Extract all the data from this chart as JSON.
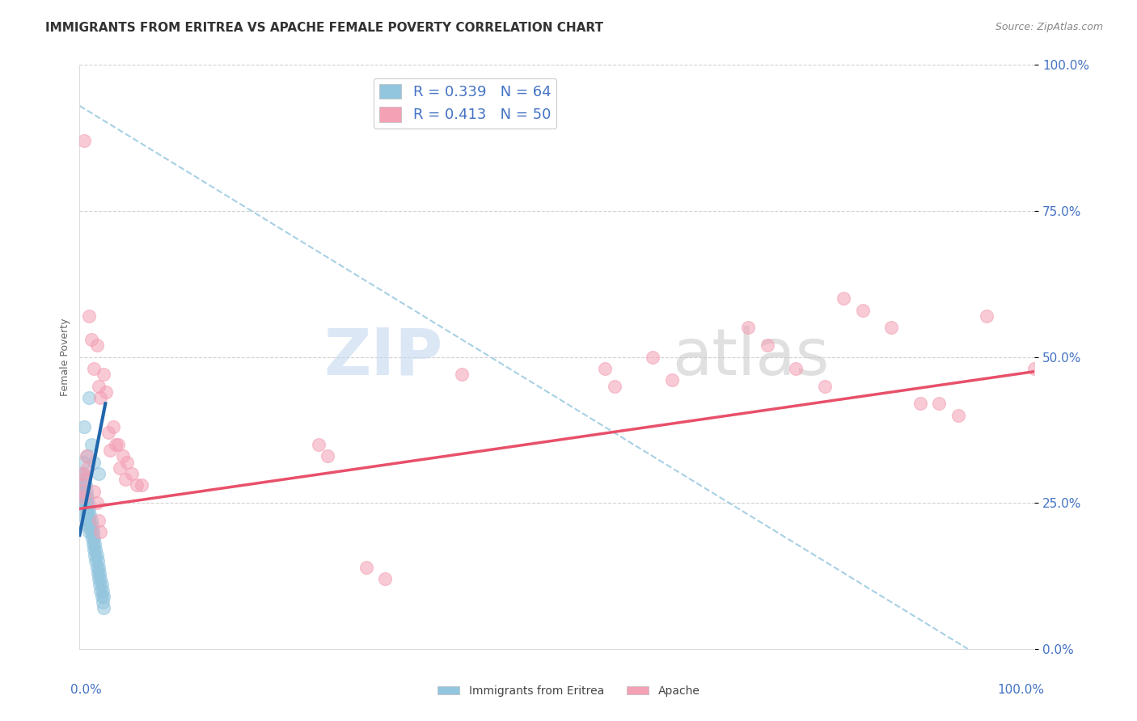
{
  "title": "IMMIGRANTS FROM ERITREA VS APACHE FEMALE POVERTY CORRELATION CHART",
  "source": "Source: ZipAtlas.com",
  "ylabel": "Female Poverty",
  "ytick_labels": [
    "0.0%",
    "25.0%",
    "50.0%",
    "75.0%",
    "100.0%"
  ],
  "ytick_positions": [
    0.0,
    0.25,
    0.5,
    0.75,
    1.0
  ],
  "xlim": [
    0.0,
    1.0
  ],
  "ylim": [
    0.0,
    1.0
  ],
  "blue_color": "#92c5de",
  "pink_color": "#f4a0b5",
  "blue_line_color": "#2166ac",
  "pink_line_color": "#e8506a",
  "dashed_line_color": "#92c5de",
  "tick_color": "#4472c4",
  "blue_scatter": [
    [
      0.002,
      0.3
    ],
    [
      0.002,
      0.27
    ],
    [
      0.002,
      0.26
    ],
    [
      0.003,
      0.28
    ],
    [
      0.003,
      0.25
    ],
    [
      0.003,
      0.23
    ],
    [
      0.004,
      0.32
    ],
    [
      0.004,
      0.29
    ],
    [
      0.004,
      0.26
    ],
    [
      0.005,
      0.3
    ],
    [
      0.005,
      0.27
    ],
    [
      0.005,
      0.25
    ],
    [
      0.006,
      0.28
    ],
    [
      0.006,
      0.26
    ],
    [
      0.006,
      0.24
    ],
    [
      0.007,
      0.27
    ],
    [
      0.007,
      0.25
    ],
    [
      0.007,
      0.23
    ],
    [
      0.008,
      0.26
    ],
    [
      0.008,
      0.24
    ],
    [
      0.008,
      0.22
    ],
    [
      0.009,
      0.25
    ],
    [
      0.009,
      0.23
    ],
    [
      0.009,
      0.21
    ],
    [
      0.01,
      0.24
    ],
    [
      0.01,
      0.22
    ],
    [
      0.01,
      0.2
    ],
    [
      0.011,
      0.23
    ],
    [
      0.011,
      0.21
    ],
    [
      0.012,
      0.22
    ],
    [
      0.012,
      0.2
    ],
    [
      0.013,
      0.21
    ],
    [
      0.013,
      0.19
    ],
    [
      0.014,
      0.2
    ],
    [
      0.014,
      0.18
    ],
    [
      0.015,
      0.19
    ],
    [
      0.015,
      0.17
    ],
    [
      0.016,
      0.18
    ],
    [
      0.016,
      0.16
    ],
    [
      0.017,
      0.17
    ],
    [
      0.017,
      0.15
    ],
    [
      0.018,
      0.16
    ],
    [
      0.018,
      0.14
    ],
    [
      0.019,
      0.15
    ],
    [
      0.019,
      0.13
    ],
    [
      0.02,
      0.14
    ],
    [
      0.02,
      0.12
    ],
    [
      0.021,
      0.13
    ],
    [
      0.021,
      0.11
    ],
    [
      0.022,
      0.12
    ],
    [
      0.022,
      0.1
    ],
    [
      0.023,
      0.11
    ],
    [
      0.023,
      0.09
    ],
    [
      0.024,
      0.1
    ],
    [
      0.024,
      0.08
    ],
    [
      0.025,
      0.09
    ],
    [
      0.025,
      0.07
    ],
    [
      0.01,
      0.43
    ],
    [
      0.012,
      0.35
    ],
    [
      0.015,
      0.32
    ],
    [
      0.02,
      0.3
    ],
    [
      0.005,
      0.38
    ],
    [
      0.008,
      0.33
    ]
  ],
  "pink_scatter": [
    [
      0.005,
      0.87
    ],
    [
      0.01,
      0.57
    ],
    [
      0.012,
      0.53
    ],
    [
      0.015,
      0.48
    ],
    [
      0.018,
      0.52
    ],
    [
      0.02,
      0.45
    ],
    [
      0.022,
      0.43
    ],
    [
      0.025,
      0.47
    ],
    [
      0.028,
      0.44
    ],
    [
      0.03,
      0.37
    ],
    [
      0.032,
      0.34
    ],
    [
      0.035,
      0.38
    ],
    [
      0.038,
      0.35
    ],
    [
      0.04,
      0.35
    ],
    [
      0.042,
      0.31
    ],
    [
      0.045,
      0.33
    ],
    [
      0.048,
      0.29
    ],
    [
      0.05,
      0.32
    ],
    [
      0.055,
      0.3
    ],
    [
      0.06,
      0.28
    ],
    [
      0.065,
      0.28
    ],
    [
      0.007,
      0.33
    ],
    [
      0.008,
      0.31
    ],
    [
      0.003,
      0.3
    ],
    [
      0.004,
      0.29
    ],
    [
      0.003,
      0.27
    ],
    [
      0.004,
      0.26
    ],
    [
      0.015,
      0.27
    ],
    [
      0.018,
      0.25
    ],
    [
      0.02,
      0.22
    ],
    [
      0.022,
      0.2
    ],
    [
      0.55,
      0.48
    ],
    [
      0.56,
      0.45
    ],
    [
      0.6,
      0.5
    ],
    [
      0.62,
      0.46
    ],
    [
      0.7,
      0.55
    ],
    [
      0.72,
      0.52
    ],
    [
      0.75,
      0.48
    ],
    [
      0.78,
      0.45
    ],
    [
      0.8,
      0.6
    ],
    [
      0.82,
      0.58
    ],
    [
      0.85,
      0.55
    ],
    [
      0.88,
      0.42
    ],
    [
      0.9,
      0.42
    ],
    [
      0.92,
      0.4
    ],
    [
      0.95,
      0.57
    ],
    [
      1.0,
      0.48
    ],
    [
      0.3,
      0.14
    ],
    [
      0.32,
      0.12
    ],
    [
      0.25,
      0.35
    ],
    [
      0.26,
      0.33
    ],
    [
      0.4,
      0.47
    ]
  ],
  "blue_line": {
    "x0": 0.0,
    "y0": 0.195,
    "x1": 0.027,
    "y1": 0.42
  },
  "pink_line": {
    "x0": 0.0,
    "y0": 0.24,
    "x1": 1.0,
    "y1": 0.475
  },
  "dashed_line": {
    "x0": 0.0,
    "y0": 0.93,
    "x1": 0.93,
    "y1": 0.0
  },
  "background_color": "#ffffff",
  "title_fontsize": 11,
  "axis_label_fontsize": 9,
  "tick_fontsize": 11,
  "source_fontsize": 9,
  "legend_fontsize": 13
}
